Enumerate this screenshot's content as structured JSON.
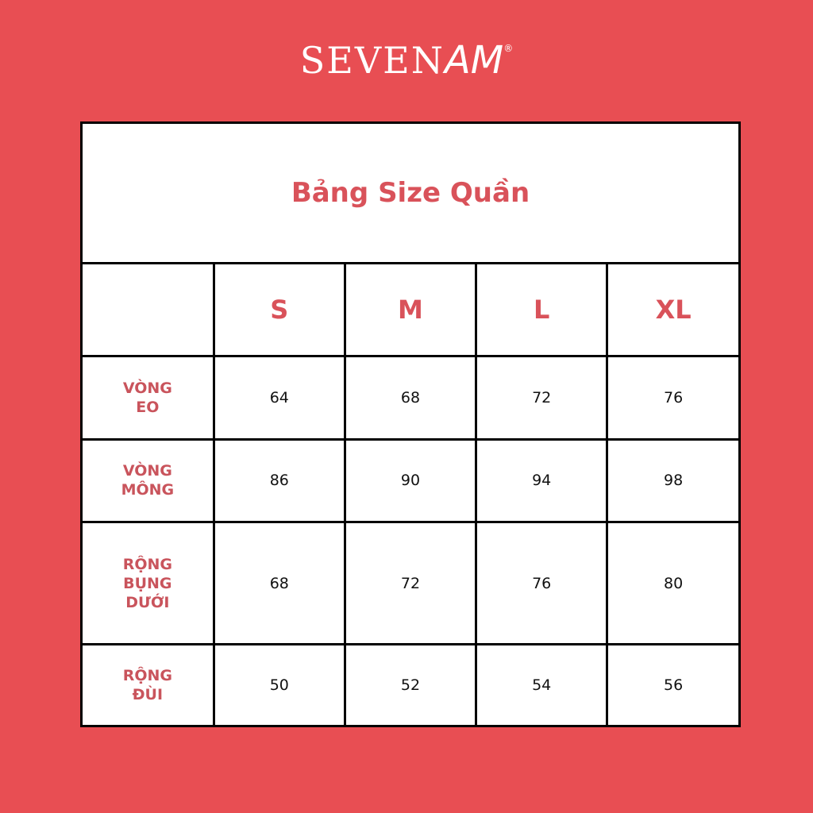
{
  "brand": {
    "logo_text": "SEVEN",
    "logo_script": "AM",
    "registered": "®"
  },
  "title": "Bảng Size Quần",
  "colors": {
    "background": "#e84e53",
    "accent": "#d9525a",
    "label": "#c9545c",
    "border": "#000000"
  },
  "table": {
    "columns": [
      "",
      "S",
      "M",
      "L",
      "XL"
    ],
    "rows": [
      {
        "label": "VÒNG\nEO",
        "values": [
          "64",
          "68",
          "72",
          "76"
        ]
      },
      {
        "label": "VÒNG\nMÔNG",
        "values": [
          "86",
          "90",
          "94",
          "98"
        ]
      },
      {
        "label": "RỘNG\nBỤNG\nDƯỚI",
        "values": [
          "68",
          "72",
          "76",
          "80"
        ]
      },
      {
        "label": "RỘNG\nĐÙI",
        "values": [
          "50",
          "52",
          "54",
          "56"
        ]
      }
    ]
  }
}
